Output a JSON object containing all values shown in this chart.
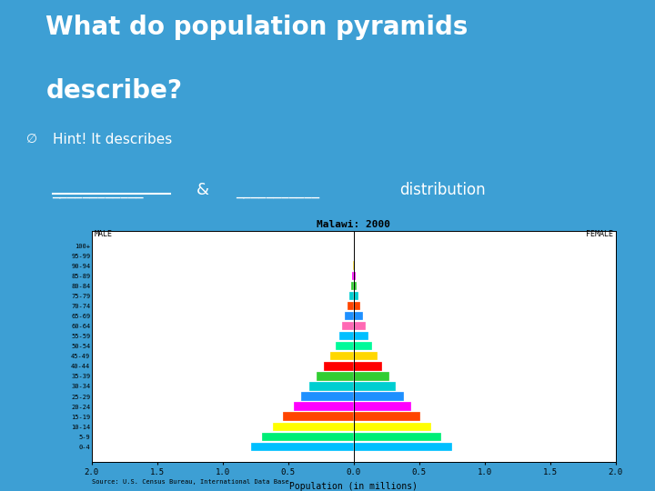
{
  "title_line1": "What do population pyramids",
  "title_line2": "describe?",
  "hint_bullet": "∅",
  "hint_text": "Hint! It describes",
  "blank1": "____________",
  "ampersand": "&",
  "blank2": "___________",
  "distribution": "distribution",
  "slide_bg": "#3d9fd4",
  "text_color": "white",
  "pyramid_title": "Malawi: 2000",
  "pyramid_xlabel": "Population (in millions)",
  "pyramid_source": "Source: U.S. Census Bureau, International Data Base.",
  "male_label": "MALE",
  "female_label": "FEMALE",
  "age_groups": [
    "0-4",
    "5-9",
    "10-14",
    "15-19",
    "20-24",
    "25-29",
    "30-34",
    "35-39",
    "40-44",
    "45-49",
    "50-54",
    "55-59",
    "60-64",
    "65-69",
    "70-74",
    "75-79",
    "80-84",
    "85-89",
    "90-94",
    "95-99",
    "100+"
  ],
  "male_values": [
    0.78,
    0.7,
    0.62,
    0.54,
    0.46,
    0.4,
    0.34,
    0.28,
    0.23,
    0.18,
    0.14,
    0.11,
    0.09,
    0.065,
    0.048,
    0.032,
    0.018,
    0.01,
    0.005,
    0.002,
    0.001
  ],
  "female_values": [
    0.75,
    0.67,
    0.59,
    0.51,
    0.44,
    0.38,
    0.32,
    0.27,
    0.22,
    0.18,
    0.14,
    0.11,
    0.09,
    0.068,
    0.052,
    0.036,
    0.022,
    0.013,
    0.007,
    0.003,
    0.001
  ],
  "bar_colors": [
    "#00BFFF",
    "#00EE76",
    "#FFFF00",
    "#FF4500",
    "#FF00FF",
    "#1E90FF",
    "#00CED1",
    "#32CD32",
    "#FF0000",
    "#FFD700",
    "#00FA9A",
    "#00BFFF",
    "#FF69B4",
    "#1E90FF",
    "#FF4500",
    "#00CED1",
    "#32CD32",
    "#FF00FF",
    "#FFD700",
    "#FF4500",
    "#00EE76"
  ],
  "xlim": 2.0
}
